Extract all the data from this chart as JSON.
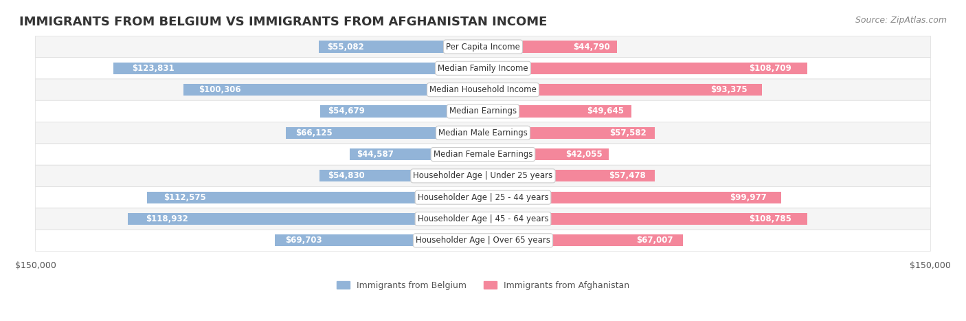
{
  "title": "IMMIGRANTS FROM BELGIUM VS IMMIGRANTS FROM AFGHANISTAN INCOME",
  "source": "Source: ZipAtlas.com",
  "categories": [
    "Per Capita Income",
    "Median Family Income",
    "Median Household Income",
    "Median Earnings",
    "Median Male Earnings",
    "Median Female Earnings",
    "Householder Age | Under 25 years",
    "Householder Age | 25 - 44 years",
    "Householder Age | 45 - 64 years",
    "Householder Age | Over 65 years"
  ],
  "belgium_values": [
    55082,
    123831,
    100306,
    54679,
    66125,
    44587,
    54830,
    112575,
    118932,
    69703
  ],
  "afghanistan_values": [
    44790,
    108709,
    93375,
    49645,
    57582,
    42055,
    57478,
    99977,
    108785,
    67007
  ],
  "belgium_color": "#92b4d8",
  "afghanistan_color": "#f4879b",
  "belgium_label": "Immigrants from Belgium",
  "afghanistan_label": "Immigrants from Afghanistan",
  "axis_max": 150000,
  "background_color": "#ffffff",
  "row_bg_light": "#f5f5f5",
  "row_bg_white": "#ffffff",
  "label_box_color": "#ffffff",
  "label_text_color": "#666666",
  "value_text_color_inside": "#ffffff",
  "value_text_color_outside": "#555555",
  "title_fontsize": 13,
  "source_fontsize": 9,
  "bar_label_fontsize": 8.5,
  "cat_label_fontsize": 8.5,
  "axis_label_fontsize": 9,
  "legend_fontsize": 9
}
